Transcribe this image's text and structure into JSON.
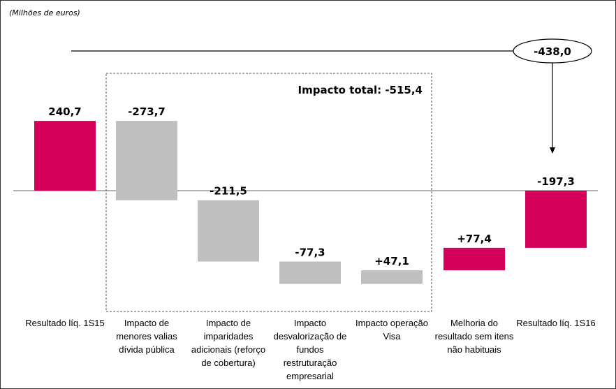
{
  "chart_data": {
    "type": "waterfall",
    "unit_label": "(Milhões de euros)",
    "categories": [
      "Resultado líq. 1S15",
      "Impacto de menores valias dívida pública",
      "Impacto de imparidades adicionais (reforço de cobertura)",
      "Impacto desvalorização de fundos restruturação empresarial",
      "Impacto operação Visa",
      "Melhoria do resultado sem itens não habituais",
      "Resultado líq. 1S16"
    ],
    "values": [
      240.7,
      -273.7,
      -211.5,
      -77.3,
      47.1,
      77.4,
      -197.3
    ],
    "kinds": [
      "total",
      "delta",
      "delta",
      "delta",
      "delta",
      "delta",
      "total"
    ],
    "data_labels": [
      "240,7",
      "-273,7",
      "-211,5",
      "-77,3",
      "+47,1",
      "+77,4",
      "-197,3"
    ],
    "colors": [
      "#d4005a",
      "#bfbfbf",
      "#bfbfbf",
      "#bfbfbf",
      "#bfbfbf",
      "#d4005a",
      "#d4005a"
    ],
    "annotations": {
      "impact_total": "Impacto total: -515,4",
      "difference": "-438,0"
    }
  }
}
